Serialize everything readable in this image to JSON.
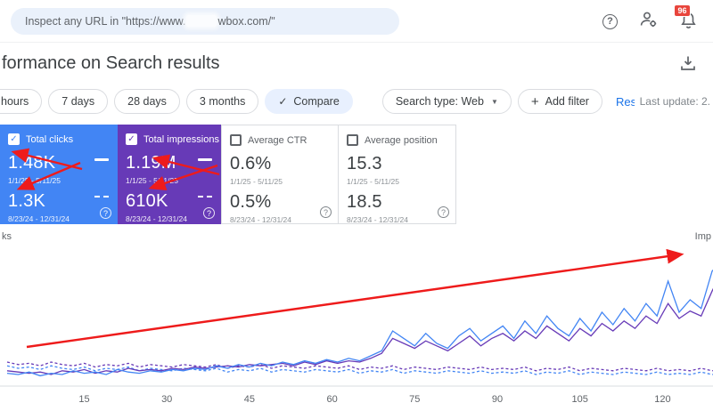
{
  "topbar": {
    "search_text_prefix": "Inspect any URL in \"https://www.",
    "search_text_suffix": "wbox.com/\"",
    "notification_count": "96"
  },
  "header": {
    "title": "formance on Search results"
  },
  "filters": {
    "range_chips": [
      "hours",
      "7 days",
      "28 days",
      "3 months"
    ],
    "compare_label": "Compare",
    "search_type_label": "Search type: Web",
    "add_filter_label": "Add filter",
    "reset_label": "Reset filters",
    "last_update": "Last update: 2."
  },
  "cards": [
    {
      "label": "Total clicks",
      "checked": true,
      "value1": "1.48K",
      "range1": "1/1/25 - 5/11/25",
      "value2": "1.3K",
      "range2": "8/23/24 - 12/31/24",
      "bg": "#4285f4"
    },
    {
      "label": "Total impressions",
      "checked": true,
      "value1": "1.19M",
      "range1": "1/1/25 - 5/11/25",
      "value2": "610K",
      "range2": "8/23/24 - 12/31/24",
      "bg": "#673ab7"
    },
    {
      "label": "Average CTR",
      "checked": false,
      "value1": "0.6%",
      "range1": "1/1/25 - 5/11/25",
      "value2": "0.5%",
      "range2": "8/23/24 - 12/31/24",
      "bg": "#ffffff"
    },
    {
      "label": "Average position",
      "checked": false,
      "value1": "15.3",
      "range1": "1/1/25 - 5/11/25",
      "value2": "18.5",
      "range2": "8/23/24 - 12/31/24",
      "bg": "#ffffff"
    }
  ],
  "colors": {
    "clicks_blue": "#4285f4",
    "impressions_purple": "#673ab7",
    "compare_chip_bg": "#e8f0fe",
    "link_blue": "#1a73e8",
    "badge_red": "#e8453c",
    "annotation_red": "#ee1b1b"
  },
  "annotations": {
    "arrow_color": "#ee1b1b",
    "arrow_count": 5
  },
  "chart_data": {
    "type": "line",
    "title": "",
    "xlabel": "",
    "ylabel_left": "ks",
    "ylabel_right": "Imp",
    "x_ticks": [
      15,
      30,
      45,
      60,
      75,
      90,
      105,
      120
    ],
    "x_start_day": 1,
    "x_step": 2,
    "ylim": [
      0,
      100
    ],
    "note": "y values estimated on relative 0-100 scale; numeric y axes cropped out of screenshot",
    "series": [
      {
        "name": "Clicks 8/23/24 - 12/31/24",
        "style": "dashed",
        "color": "#4285f4",
        "values": [
          12,
          10,
          11,
          9,
          12,
          10,
          9,
          11,
          8,
          10,
          9,
          11,
          8,
          10,
          9,
          8,
          10,
          9,
          8,
          10,
          7,
          9,
          8,
          10,
          7,
          9,
          8,
          7,
          9,
          8,
          7,
          9,
          6,
          8,
          7,
          9,
          6,
          8,
          7,
          6,
          8,
          7,
          6,
          8,
          6,
          7,
          6,
          8,
          5,
          7,
          6,
          8,
          5,
          7,
          6,
          5,
          7,
          6,
          5,
          7,
          5,
          6,
          5,
          7,
          5,
          6
        ]
      },
      {
        "name": "Impressions 8/23/24 - 12/31/24",
        "style": "dashed",
        "color": "#673ab7",
        "values": [
          15,
          13,
          14,
          12,
          15,
          13,
          12,
          14,
          11,
          13,
          12,
          14,
          11,
          13,
          12,
          11,
          13,
          12,
          11,
          13,
          10,
          12,
          11,
          13,
          10,
          12,
          11,
          10,
          12,
          11,
          10,
          12,
          9,
          11,
          10,
          12,
          9,
          11,
          10,
          9,
          11,
          10,
          9,
          11,
          9,
          10,
          9,
          11,
          8,
          10,
          9,
          11,
          8,
          10,
          9,
          8,
          10,
          9,
          8,
          10,
          8,
          9,
          8,
          10,
          8,
          9
        ]
      },
      {
        "name": "Impressions 1/1/25 - 5/11/25",
        "style": "solid",
        "color": "#673ab7",
        "values": [
          8,
          7,
          6,
          7,
          5,
          8,
          7,
          9,
          6,
          8,
          7,
          10,
          8,
          9,
          8,
          10,
          9,
          11,
          10,
          11,
          12,
          11,
          13,
          12,
          13,
          14,
          12,
          15,
          13,
          16,
          14,
          16,
          15,
          18,
          22,
          34,
          30,
          26,
          32,
          28,
          24,
          30,
          36,
          28,
          34,
          38,
          32,
          40,
          34,
          44,
          38,
          32,
          42,
          36,
          46,
          40,
          48,
          42,
          52,
          46,
          62,
          50,
          56,
          52,
          72,
          90
        ]
      },
      {
        "name": "Clicks 1/1/25 - 5/11/25",
        "style": "solid",
        "color": "#4285f4",
        "values": [
          6,
          5,
          7,
          4,
          6,
          5,
          8,
          6,
          7,
          5,
          9,
          7,
          6,
          8,
          7,
          9,
          8,
          10,
          9,
          12,
          10,
          13,
          11,
          14,
          12,
          15,
          13,
          16,
          14,
          17,
          15,
          18,
          16,
          20,
          24,
          40,
          34,
          28,
          38,
          30,
          26,
          36,
          42,
          32,
          38,
          44,
          34,
          48,
          38,
          52,
          42,
          36,
          50,
          40,
          55,
          45,
          58,
          48,
          62,
          52,
          80,
          55,
          65,
          58,
          88,
          97
        ]
      }
    ]
  }
}
